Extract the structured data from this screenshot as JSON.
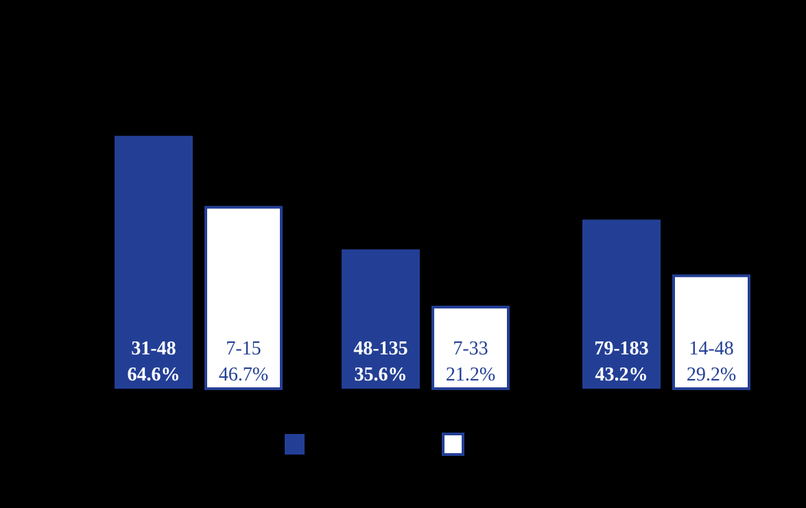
{
  "chart_data": {
    "type": "bar",
    "title": "",
    "xlabel": "",
    "ylabel": "",
    "grid": false,
    "legend": "bottom-center",
    "colors": {
      "background": "#000000",
      "series_fill": [
        "#233f95",
        "#ffffff"
      ],
      "series_stroke": [
        "#233f95",
        "#233f95"
      ],
      "label_text": [
        "#ffffff",
        "#233f95"
      ]
    },
    "ylim": [
      0,
      100
    ],
    "categories": [
      "",
      "",
      ""
    ],
    "series": [
      {
        "values": [
          64.6,
          35.6,
          43.2
        ],
        "range_labels": [
          "31-48",
          "48-135",
          "79-183"
        ],
        "percent_labels": [
          "64.6%",
          "35.6%",
          "43.2%"
        ]
      },
      {
        "values": [
          46.7,
          21.2,
          29.2
        ],
        "range_labels": [
          "7-15",
          "7-33",
          "14-48"
        ],
        "percent_labels": [
          "46.7%",
          "21.2%",
          "29.2%"
        ]
      }
    ]
  }
}
